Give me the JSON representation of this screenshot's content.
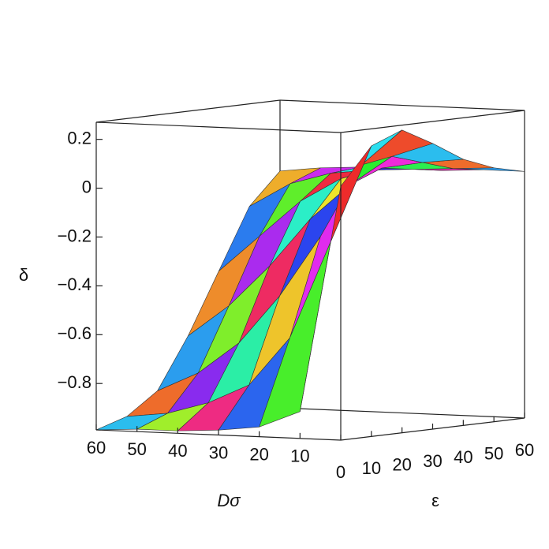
{
  "chart_data": {
    "type": "surface",
    "xlabel": "Dσ",
    "ylabel": "ε",
    "zlabel": "δ",
    "x": [
      0,
      10,
      20,
      30,
      40,
      50,
      60
    ],
    "y": [
      0,
      10,
      20,
      30,
      40,
      50,
      60
    ],
    "z": [
      [
        0.05,
        0.2,
        0.25,
        0.18,
        0.1,
        0.05,
        0.02
      ],
      [
        -0.88,
        -0.2,
        0.1,
        0.12,
        0.08,
        0.04,
        0.02
      ],
      [
        -0.95,
        -0.6,
        -0.2,
        0.0,
        0.05,
        0.03,
        0.01
      ],
      [
        -0.97,
        -0.8,
        -0.45,
        -0.15,
        0,
        0.02,
        0.01
      ],
      [
        -0.98,
        -0.88,
        -0.65,
        -0.35,
        -0.1,
        0,
        0.01
      ],
      [
        -0.98,
        -0.93,
        -0.78,
        -0.52,
        -0.25,
        -0.05,
        0
      ],
      [
        -0.99,
        -0.95,
        -0.86,
        -0.65,
        -0.4,
        -0.15,
        -0.02
      ]
    ],
    "xlim": [
      0,
      60
    ],
    "ylim": [
      0,
      60
    ],
    "zlim": [
      -0.99,
      0.27
    ],
    "xticks": [
      10,
      20,
      30,
      40,
      50,
      60
    ],
    "yticks": [
      0,
      10,
      20,
      30,
      40,
      50,
      60
    ],
    "zticks": [
      0.2,
      0,
      {
        "value": -0.2,
        "label": "−0.2"
      },
      {
        "value": -0.4,
        "label": "−0.4"
      },
      {
        "value": -0.6,
        "label": "−0.6"
      },
      {
        "value": -0.8,
        "label": "−0.8"
      }
    ]
  }
}
